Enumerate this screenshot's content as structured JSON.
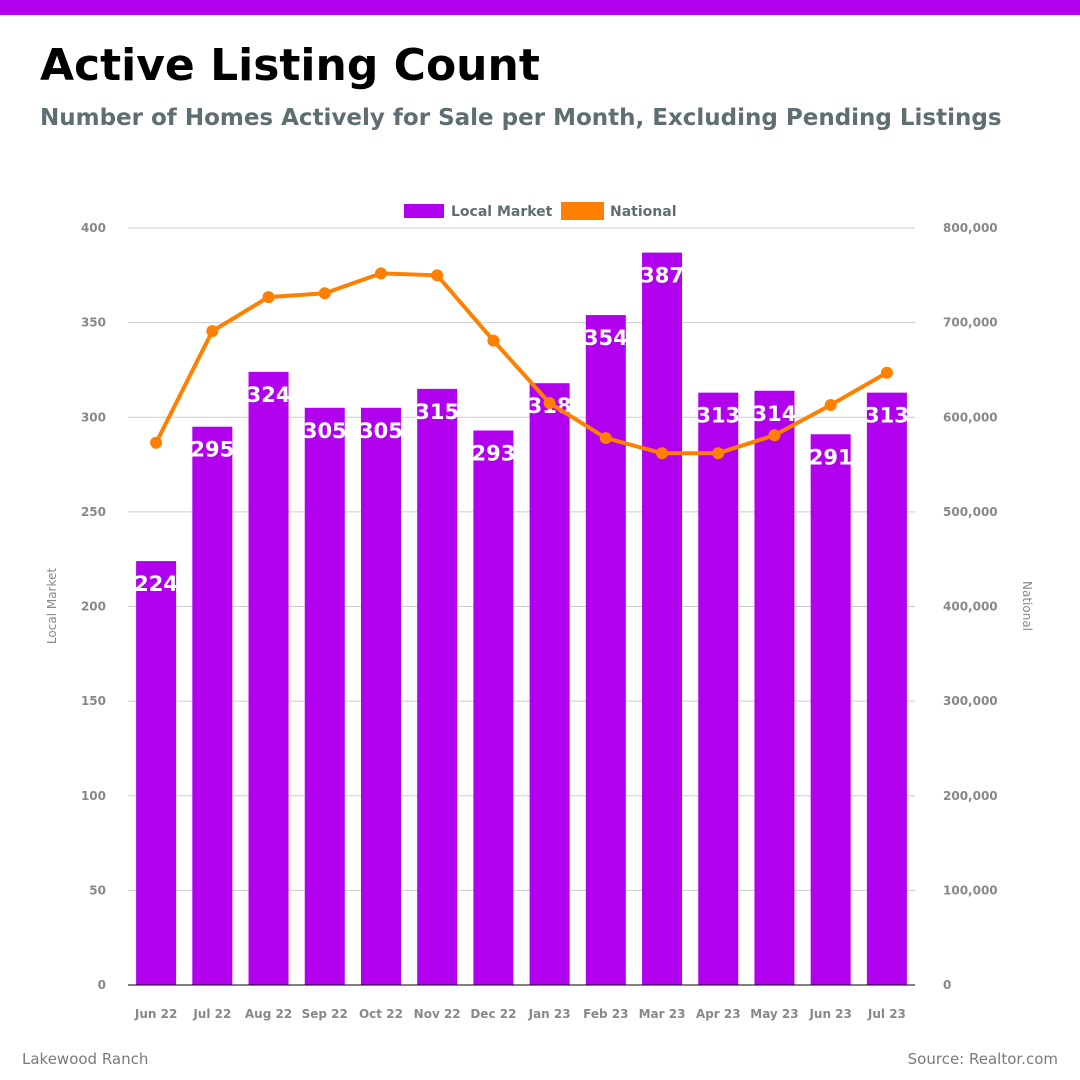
{
  "header": {
    "title": "Active Listing Count",
    "subtitle": "Number of Homes Actively for Sale per Month, Excluding Pending Listings"
  },
  "footer": {
    "left": "Lakewood Ranch",
    "right": "Source: Realtor.com"
  },
  "colors": {
    "accent": "#b000ee",
    "local": "#b000ee",
    "national": "#ff8000",
    "grid": "#cccccc",
    "tick": "#888888",
    "legend_text": "#5f6e72"
  },
  "chart_data": {
    "type": "bar",
    "categories": [
      "Jun 22",
      "Jul 22",
      "Aug 22",
      "Sep 22",
      "Oct 22",
      "Nov 22",
      "Dec 22",
      "Jan 23",
      "Feb 23",
      "Mar 23",
      "Apr 23",
      "May 23",
      "Jun 23",
      "Jul 23"
    ],
    "series": [
      {
        "name": "Local Market",
        "type": "bar",
        "axis": "left",
        "values": [
          224,
          295,
          324,
          305,
          305,
          315,
          293,
          318,
          354,
          387,
          313,
          314,
          291,
          313
        ],
        "labels": [
          "224",
          "295",
          "324",
          "305",
          "305",
          "315",
          "293",
          "318",
          "354",
          "387",
          "313",
          "314",
          "291",
          "313"
        ]
      },
      {
        "name": "National",
        "type": "line",
        "axis": "right",
        "values": [
          573000,
          691000,
          727000,
          731000,
          752000,
          750000,
          681000,
          615000,
          578000,
          562000,
          562000,
          581000,
          613000,
          647000
        ]
      }
    ],
    "ylabel_left": "Local Market",
    "ylabel_right": "National",
    "ylim_left": [
      0,
      400
    ],
    "ylim_right": [
      0,
      800000
    ],
    "yticks_left": [
      "0",
      "50",
      "100",
      "150",
      "200",
      "250",
      "300",
      "350",
      "400"
    ],
    "yticks_right": [
      "0",
      "100,000",
      "200,000",
      "300,000",
      "400,000",
      "500,000",
      "600,000",
      "700,000",
      "800,000"
    ],
    "grid": true,
    "legend": [
      "Local Market",
      "National"
    ],
    "legend_position": "top-center"
  }
}
